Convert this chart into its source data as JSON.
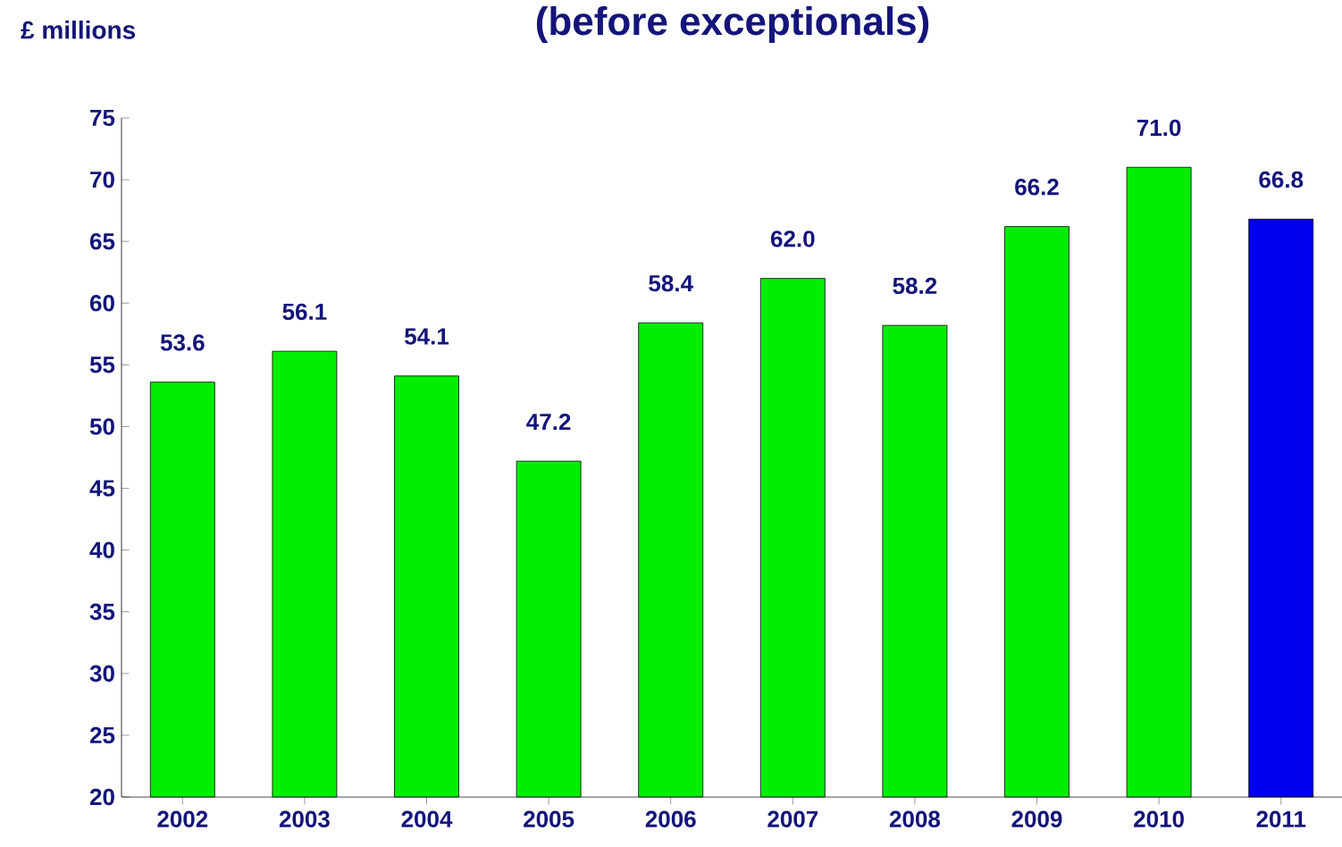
{
  "chart_data": {
    "type": "bar",
    "title": "(before exceptionals)",
    "ylabel": "£ millions",
    "categories": [
      "2002",
      "2003",
      "2004",
      "2005",
      "2006",
      "2007",
      "2008",
      "2009",
      "2010",
      "2011"
    ],
    "values": [
      53.6,
      56.1,
      54.1,
      47.2,
      58.4,
      62.0,
      58.2,
      66.2,
      71.0,
      66.8
    ],
    "value_labels": [
      "53.6",
      "56.1",
      "54.1",
      "47.2",
      "58.4",
      "62.0",
      "58.2",
      "66.2",
      "71.0",
      "66.8"
    ],
    "colors": [
      "#00ee00",
      "#00ee00",
      "#00ee00",
      "#00ee00",
      "#00ee00",
      "#00ee00",
      "#00ee00",
      "#00ee00",
      "#00ee00",
      "#0000ee"
    ],
    "ylim": [
      20,
      75
    ],
    "yticks": [
      20,
      25,
      30,
      35,
      40,
      45,
      50,
      55,
      60,
      65,
      70,
      75
    ],
    "grid": false
  }
}
